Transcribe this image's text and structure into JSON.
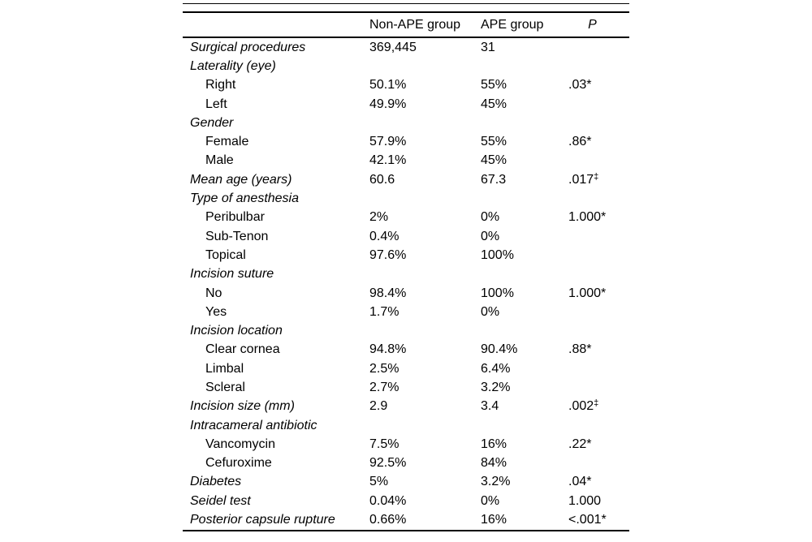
{
  "table": {
    "header": {
      "col_label": "",
      "col_non_ape": "Non-APE group",
      "col_ape": "APE group",
      "col_p": "P"
    },
    "rows": [
      {
        "label": "Surgical procedures",
        "style": "category",
        "non_ape": "369,445",
        "ape": "31",
        "p": "",
        "p_sup": ""
      },
      {
        "label": "Laterality (eye)",
        "style": "category",
        "non_ape": "",
        "ape": "",
        "p": "",
        "p_sup": ""
      },
      {
        "label": "Right",
        "style": "sub",
        "non_ape": "50.1%",
        "ape": "55%",
        "p": ".03*",
        "p_sup": ""
      },
      {
        "label": "Left",
        "style": "sub",
        "non_ape": "49.9%",
        "ape": "45%",
        "p": "",
        "p_sup": ""
      },
      {
        "label": "Gender",
        "style": "category",
        "non_ape": "",
        "ape": "",
        "p": "",
        "p_sup": ""
      },
      {
        "label": "Female",
        "style": "sub",
        "non_ape": "57.9%",
        "ape": "55%",
        "p": ".86*",
        "p_sup": ""
      },
      {
        "label": "Male",
        "style": "sub",
        "non_ape": "42.1%",
        "ape": "45%",
        "p": "",
        "p_sup": ""
      },
      {
        "label": "Mean age (years)",
        "style": "category",
        "non_ape": "60.6",
        "ape": "67.3",
        "p": ".017",
        "p_sup": "‡"
      },
      {
        "label": "Type of anesthesia",
        "style": "category",
        "non_ape": "",
        "ape": "",
        "p": "",
        "p_sup": ""
      },
      {
        "label": "Peribulbar",
        "style": "sub",
        "non_ape": "2%",
        "ape": "0%",
        "p": "1.000*",
        "p_sup": ""
      },
      {
        "label": "Sub-Tenon",
        "style": "sub",
        "non_ape": "0.4%",
        "ape": "0%",
        "p": "",
        "p_sup": ""
      },
      {
        "label": "Topical",
        "style": "sub",
        "non_ape": "97.6%",
        "ape": "100%",
        "p": "",
        "p_sup": ""
      },
      {
        "label": "Incision suture",
        "style": "category",
        "non_ape": "",
        "ape": "",
        "p": "",
        "p_sup": ""
      },
      {
        "label": "No",
        "style": "sub",
        "non_ape": "98.4%",
        "ape": "100%",
        "p": "1.000*",
        "p_sup": ""
      },
      {
        "label": "Yes",
        "style": "sub",
        "non_ape": "1.7%",
        "ape": "0%",
        "p": "",
        "p_sup": ""
      },
      {
        "label": "Incision location",
        "style": "category",
        "non_ape": "",
        "ape": "",
        "p": "",
        "p_sup": ""
      },
      {
        "label": "Clear cornea",
        "style": "sub",
        "non_ape": "94.8%",
        "ape": "90.4%",
        "p": ".88*",
        "p_sup": ""
      },
      {
        "label": "Limbal",
        "style": "sub",
        "non_ape": "2.5%",
        "ape": "6.4%",
        "p": "",
        "p_sup": ""
      },
      {
        "label": "Scleral",
        "style": "sub",
        "non_ape": "2.7%",
        "ape": "3.2%",
        "p": "",
        "p_sup": ""
      },
      {
        "label": "Incision size (mm)",
        "style": "category",
        "non_ape": "2.9",
        "ape": "3.4",
        "p": ".002",
        "p_sup": "‡"
      },
      {
        "label": "Intracameral antibiotic",
        "style": "category",
        "non_ape": "",
        "ape": "",
        "p": "",
        "p_sup": ""
      },
      {
        "label": "Vancomycin",
        "style": "sub",
        "non_ape": "7.5%",
        "ape": "16%",
        "p": ".22*",
        "p_sup": ""
      },
      {
        "label": "Cefuroxime",
        "style": "sub",
        "non_ape": "92.5%",
        "ape": "84%",
        "p": "",
        "p_sup": ""
      },
      {
        "label": "Diabetes",
        "style": "category",
        "non_ape": "5%",
        "ape": "3.2%",
        "p": ".04*",
        "p_sup": ""
      },
      {
        "label": "Seidel test",
        "style": "category",
        "non_ape": "0.04%",
        "ape": "0%",
        "p": "1.000",
        "p_sup": ""
      },
      {
        "label": "Posterior capsule rupture",
        "style": "category",
        "non_ape": "0.66%",
        "ape": "16%",
        "p": "<.001*",
        "p_sup": ""
      }
    ]
  }
}
